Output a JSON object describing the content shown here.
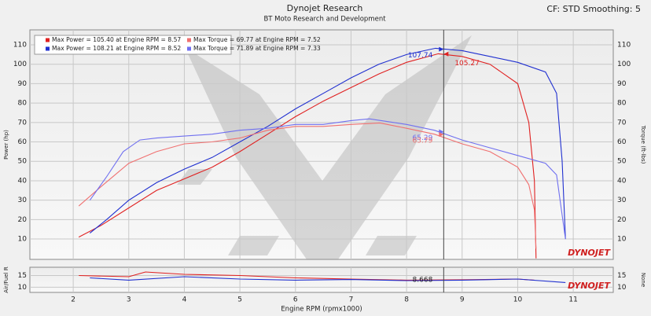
{
  "header": {
    "title": "Dynojet Research",
    "subtitle": "BT Moto Research and Development",
    "settings": "CF: STD Smoothing: 5"
  },
  "chart_data": [
    {
      "type": "line",
      "ylabel": "Power (hp)",
      "y2label": "Torque (ft-lbs)",
      "logo": "DYNOJET",
      "xlim": [
        1.22,
        11.72
      ],
      "xticks": [
        2,
        3,
        4,
        5,
        6,
        7,
        8,
        9,
        10,
        11
      ],
      "ylim": [
        -0.5,
        117.7
      ],
      "yticks": [
        10,
        20,
        30,
        40,
        50,
        60,
        70,
        80,
        90,
        100,
        110
      ],
      "y2lim": [
        -0.5,
        117.7
      ],
      "y2ticks": [
        10,
        20,
        30,
        40,
        50,
        60,
        70,
        80,
        90,
        100,
        110
      ],
      "grid": true,
      "legend": "upper left",
      "series": [
        {
          "name": "Max Power = 105.40 at Engine RPM = 8.57",
          "color": "#e02020",
          "x": [
            2.1,
            2.5,
            3.0,
            3.5,
            4.0,
            4.5,
            5.0,
            5.5,
            6.0,
            6.5,
            7.0,
            7.5,
            8.0,
            8.57,
            9.0,
            9.5,
            10.0,
            10.2,
            10.3,
            10.33
          ],
          "values": [
            11,
            17,
            26,
            35,
            41,
            47,
            55,
            64,
            73,
            81,
            88,
            95,
            101,
            105.4,
            104,
            100,
            90,
            70,
            40,
            0
          ]
        },
        {
          "name": "Max Power = 108.21 at Engine RPM = 8.52",
          "color": "#2030d0",
          "x": [
            2.3,
            2.6,
            3.0,
            3.5,
            4.0,
            4.5,
            5.0,
            5.5,
            6.0,
            6.5,
            7.0,
            7.5,
            8.0,
            8.52,
            9.0,
            9.5,
            10.0,
            10.5,
            10.7,
            10.8,
            10.86
          ],
          "values": [
            13,
            20,
            30,
            39,
            46,
            52,
            60,
            68,
            77,
            85,
            93,
            100,
            105,
            108.21,
            107,
            104,
            101,
            96,
            85,
            50,
            10
          ]
        },
        {
          "name": "Max Torque = 69.77 at Engine RPM = 7.52",
          "color": "#f07070",
          "axis": "y2",
          "x": [
            2.1,
            2.5,
            3.0,
            3.5,
            4.0,
            4.5,
            5.0,
            5.5,
            6.0,
            6.5,
            7.0,
            7.52,
            8.0,
            8.5,
            9.0,
            9.5,
            10.0,
            10.2,
            10.3,
            10.33
          ],
          "values": [
            27,
            37,
            49,
            55,
            59,
            60,
            62,
            66,
            68,
            68,
            69,
            69.77,
            67,
            64,
            59,
            55,
            47,
            38,
            25,
            5
          ]
        },
        {
          "name": "Max Torque = 71.89 at Engine RPM = 7.33",
          "color": "#7070f0",
          "axis": "y2",
          "x": [
            2.3,
            2.6,
            2.9,
            3.2,
            3.5,
            4.0,
            4.5,
            5.0,
            5.5,
            6.0,
            6.5,
            7.0,
            7.33,
            8.0,
            8.5,
            9.0,
            9.5,
            10.0,
            10.5,
            10.7,
            10.86
          ],
          "values": [
            30,
            42,
            55,
            61,
            62,
            63,
            64,
            66,
            67,
            69,
            69,
            71,
            71.89,
            69,
            66,
            61,
            57,
            53,
            49,
            43,
            10
          ]
        }
      ],
      "cursor": {
        "value": 8.668
      },
      "cursor_readouts": [
        {
          "value": 107.74,
          "label": "107.74",
          "color": "#2030d0",
          "side": "left"
        },
        {
          "value": 105.27,
          "label": "105.27",
          "color": "#e02020",
          "side": "right"
        },
        {
          "value": 65.29,
          "label": "65.29",
          "color": "#7070f0",
          "side": "left"
        },
        {
          "value": 63.79,
          "label": "63.79",
          "color": "#f07070",
          "side": "left"
        }
      ]
    },
    {
      "type": "line",
      "ylabel": "Air/Fuel R",
      "y2label": "None",
      "xlabel": "Engine RPM (rpmx1000)",
      "logo": "DYNOJET",
      "xlim": [
        1.22,
        11.72
      ],
      "xticks": [
        2,
        3,
        4,
        5,
        6,
        7,
        8,
        9,
        10,
        11
      ],
      "ylim": [
        7.8,
        18.5
      ],
      "yticks": [
        10,
        15
      ],
      "y2lim": [
        7.8,
        18.5
      ],
      "y2ticks": [
        10,
        15
      ],
      "grid": true,
      "series": [
        {
          "color": "#e02020",
          "x": [
            2.1,
            3.0,
            3.3,
            4.0,
            5.0,
            6.0,
            7.0,
            8.0,
            9.0,
            10.0,
            10.3
          ],
          "values": [
            15,
            14.5,
            16.5,
            15.5,
            15,
            14,
            13.5,
            13,
            13.2,
            13.5,
            13
          ]
        },
        {
          "color": "#2030d0",
          "x": [
            2.3,
            3.0,
            4.0,
            5.0,
            6.0,
            7.0,
            8.0,
            9.0,
            10.0,
            10.86
          ],
          "values": [
            14,
            13,
            14.5,
            13.5,
            13,
            13.3,
            12.8,
            13,
            13.5,
            12
          ]
        }
      ],
      "cursor": {
        "value": 8.668,
        "label": "8.668"
      }
    }
  ]
}
